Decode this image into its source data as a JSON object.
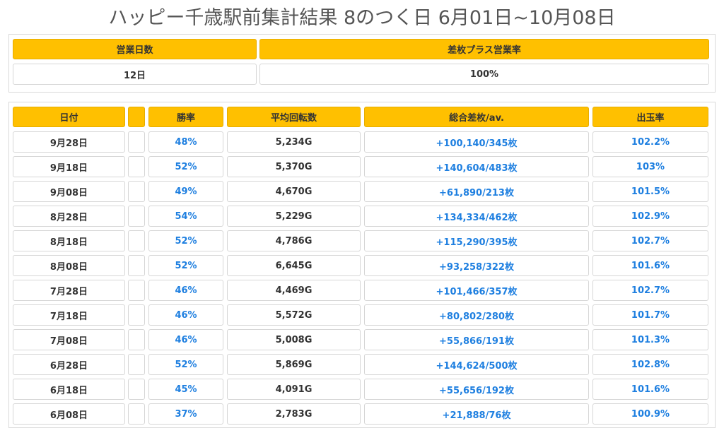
{
  "page": {
    "title": "ハッピー千歳駅前集計結果 8のつく日 6月01日~10月08日"
  },
  "summary": {
    "headers": [
      "営業日数",
      "差枚プラス営業率"
    ],
    "values": [
      "12日",
      "100%"
    ]
  },
  "table": {
    "headers": [
      "日付",
      "",
      "勝率",
      "平均回転数",
      "総合差枚/av.",
      "出玉率"
    ],
    "rows": [
      [
        "9月28日",
        "",
        "48%",
        "5,234G",
        "+100,140/345枚",
        "102.2%"
      ],
      [
        "9月18日",
        "",
        "52%",
        "5,370G",
        "+140,604/483枚",
        "103%"
      ],
      [
        "9月08日",
        "",
        "49%",
        "4,670G",
        "+61,890/213枚",
        "101.5%"
      ],
      [
        "8月28日",
        "",
        "54%",
        "5,229G",
        "+134,334/462枚",
        "102.9%"
      ],
      [
        "8月18日",
        "",
        "52%",
        "4,786G",
        "+115,290/395枚",
        "102.7%"
      ],
      [
        "8月08日",
        "",
        "52%",
        "6,645G",
        "+93,258/322枚",
        "101.6%"
      ],
      [
        "7月28日",
        "",
        "46%",
        "4,469G",
        "+101,466/357枚",
        "102.7%"
      ],
      [
        "7月18日",
        "",
        "46%",
        "5,572G",
        "+80,802/280枚",
        "101.7%"
      ],
      [
        "7月08日",
        "",
        "46%",
        "5,008G",
        "+55,866/191枚",
        "101.3%"
      ],
      [
        "6月28日",
        "",
        "52%",
        "5,869G",
        "+144,624/500枚",
        "102.8%"
      ],
      [
        "6月18日",
        "",
        "45%",
        "4,091G",
        "+55,656/192枚",
        "101.6%"
      ],
      [
        "6月08日",
        "",
        "37%",
        "2,783G",
        "+21,888/76枚",
        "100.9%"
      ]
    ]
  },
  "colors": {
    "header_bg": "#ffc000",
    "value_blue": "#1e7fe0"
  }
}
